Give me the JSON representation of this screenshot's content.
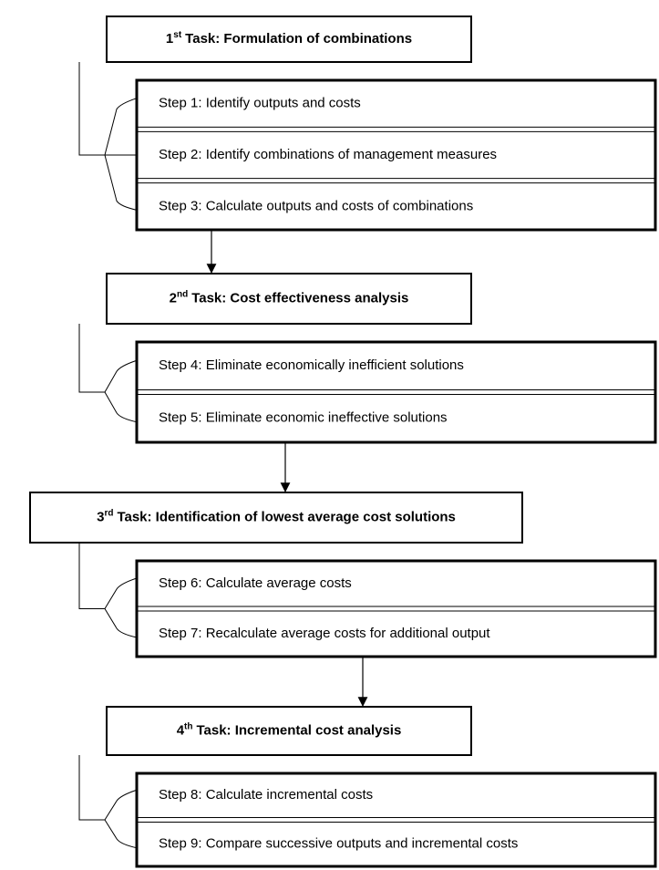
{
  "tasks": [
    {
      "number": "1",
      "ordinal": "st",
      "title": "Task: Formulation of combinations",
      "steps": [
        "Step 1: Identify outputs and costs",
        "Step 2: Identify combinations of management measures",
        "Step 3: Calculate outputs and costs of combinations"
      ]
    },
    {
      "number": "2",
      "ordinal": "nd",
      "title": "Task: Cost effectiveness analysis",
      "steps": [
        "Step 4: Eliminate economically inefficient solutions",
        "Step 5: Eliminate economic ineffective solutions"
      ]
    },
    {
      "number": "3",
      "ordinal": "rd",
      "title": "Task: Identification of lowest average cost solutions",
      "steps": [
        "Step 6: Calculate average costs",
        "Step 7: Recalculate average costs for additional output"
      ]
    },
    {
      "number": "4",
      "ordinal": "th",
      "title": "Task: Incremental cost analysis",
      "steps": [
        "Step 8: Calculate incremental costs",
        "Step 9: Compare successive outputs and incremental costs"
      ]
    }
  ]
}
